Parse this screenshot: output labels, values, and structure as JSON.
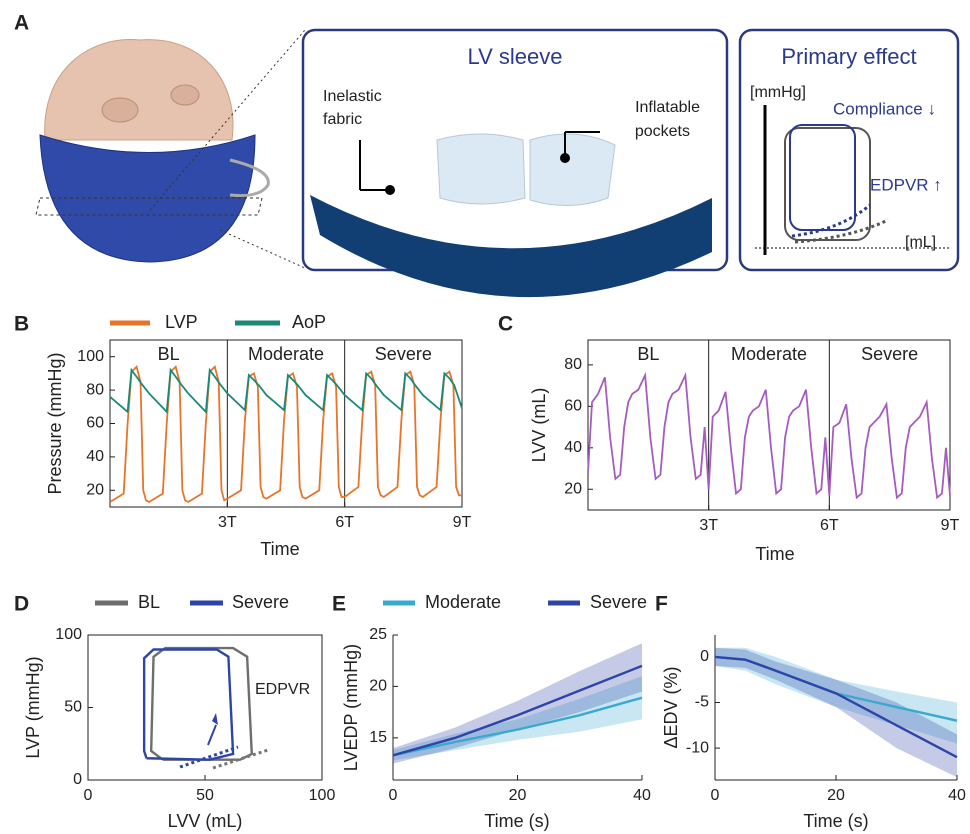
{
  "panel_a": {
    "label": "A",
    "sleeve_title": "LV sleeve",
    "fabric": [
      "Inelastic",
      "fabric"
    ],
    "pockets": [
      "Inflatable",
      "pockets"
    ],
    "effect_title": "Primary effect",
    "y_unit": "[mmHg]",
    "compliance": "Compliance ↓",
    "edpvr": "EDPVR ↑",
    "x_unit": "[mL]"
  },
  "chart_data": [
    {
      "panel": "B",
      "type": "line",
      "y_label": "Pressure (mmHg)",
      "x_label": "Time",
      "box": true,
      "xlim": [
        0,
        9
      ],
      "ylim": [
        10,
        110
      ],
      "yticks": [
        20,
        40,
        60,
        80,
        100
      ],
      "xticks": [
        {
          "value": 3,
          "label": "3T"
        },
        {
          "value": 6,
          "label": "6T"
        },
        {
          "value": 9,
          "label": "9T"
        }
      ],
      "sections": [
        {
          "label": "BL",
          "start": 0,
          "end": 3
        },
        {
          "label": "Moderate",
          "start": 3,
          "end": 6
        },
        {
          "label": "Severe",
          "start": 6,
          "end": 9
        }
      ],
      "series": [
        {
          "name": "LVP",
          "color": "#e8742a",
          "x": [
            0,
            0.35,
            0.45,
            0.55,
            0.68,
            0.78,
            0.85,
            0.92,
            1,
            1.35,
            1.45,
            1.55,
            1.68,
            1.78,
            1.85,
            1.92,
            2,
            2.35,
            2.45,
            2.55,
            2.68,
            2.78,
            2.85,
            2.92,
            3,
            3.35,
            3.45,
            3.55,
            3.68,
            3.78,
            3.85,
            3.92,
            4,
            4.35,
            4.45,
            4.55,
            4.68,
            4.78,
            4.85,
            4.92,
            5,
            5.35,
            5.45,
            5.55,
            5.68,
            5.78,
            5.85,
            5.92,
            6,
            6.35,
            6.45,
            6.55,
            6.68,
            6.78,
            6.85,
            6.92,
            7,
            7.35,
            7.45,
            7.55,
            7.68,
            7.78,
            7.85,
            7.92,
            8,
            8.35,
            8.45,
            8.55,
            8.68,
            8.78,
            8.85,
            8.92,
            9
          ],
          "values": [
            13,
            18,
            60,
            91,
            94,
            85,
            20,
            14,
            13,
            18,
            60,
            91,
            94,
            85,
            20,
            14,
            13,
            18,
            60,
            91,
            94,
            85,
            20,
            14,
            15,
            20,
            62,
            88,
            90,
            82,
            22,
            16,
            15,
            20,
            62,
            88,
            90,
            82,
            22,
            16,
            15,
            20,
            62,
            88,
            90,
            82,
            22,
            16,
            16,
            22,
            62,
            89,
            91,
            83,
            22,
            17,
            16,
            22,
            62,
            89,
            91,
            83,
            22,
            17,
            16,
            22,
            62,
            89,
            91,
            83,
            22,
            17,
            17
          ]
        },
        {
          "name": "AoP",
          "color": "#1a8a78",
          "x": [
            0,
            0.45,
            0.55,
            0.68,
            0.8,
            1,
            1.45,
            1.55,
            1.68,
            1.8,
            2,
            2.45,
            2.55,
            2.68,
            2.8,
            3,
            3.45,
            3.55,
            3.68,
            3.8,
            4,
            4.45,
            4.55,
            4.68,
            4.8,
            5,
            5.45,
            5.55,
            5.68,
            5.8,
            6,
            6.45,
            6.55,
            6.68,
            6.8,
            7,
            7.45,
            7.55,
            7.68,
            7.8,
            8,
            8.45,
            8.55,
            8.68,
            8.8,
            9
          ],
          "values": [
            76,
            67,
            92,
            88,
            84,
            78,
            67,
            92,
            88,
            84,
            78,
            67,
            92,
            88,
            84,
            78,
            68,
            89,
            86,
            83,
            77,
            68,
            89,
            86,
            83,
            77,
            68,
            89,
            86,
            83,
            77,
            68,
            90,
            87,
            83,
            77,
            68,
            90,
            87,
            83,
            77,
            68,
            90,
            87,
            83,
            69
          ]
        }
      ]
    },
    {
      "panel": "C",
      "type": "line",
      "y_label": "LVV (mL)",
      "x_label": "Time",
      "box": true,
      "xlim": [
        0,
        9
      ],
      "ylim": [
        10,
        92
      ],
      "yticks": [
        20,
        40,
        60,
        80
      ],
      "xticks": [
        {
          "value": 3,
          "label": "3T"
        },
        {
          "value": 6,
          "label": "6T"
        },
        {
          "value": 9,
          "label": "9T"
        }
      ],
      "sections": [
        {
          "label": "BL",
          "start": 0,
          "end": 3
        },
        {
          "label": "Moderate",
          "start": 3,
          "end": 6
        },
        {
          "label": "Severe",
          "start": 6,
          "end": 9
        }
      ],
      "series": [
        {
          "name": null,
          "color": "#a45cc0",
          "x": [
            0,
            0.1,
            0.25,
            0.42,
            0.55,
            0.68,
            0.8,
            0.9,
            1,
            1.1,
            1.25,
            1.42,
            1.55,
            1.68,
            1.8,
            1.9,
            2,
            2.1,
            2.25,
            2.42,
            2.55,
            2.68,
            2.8,
            2.9,
            3,
            3.1,
            3.25,
            3.42,
            3.55,
            3.68,
            3.8,
            3.9,
            4,
            4.1,
            4.25,
            4.42,
            4.55,
            4.68,
            4.8,
            4.9,
            5,
            5.1,
            5.25,
            5.42,
            5.55,
            5.68,
            5.8,
            5.9,
            6,
            6.1,
            6.25,
            6.42,
            6.55,
            6.68,
            6.8,
            6.9,
            7,
            7.1,
            7.25,
            7.42,
            7.55,
            7.68,
            7.8,
            7.9,
            8,
            8.1,
            8.25,
            8.42,
            8.55,
            8.68,
            8.8,
            8.9,
            9
          ],
          "values": [
            28,
            62,
            66,
            74,
            45,
            25,
            27,
            50,
            62,
            66,
            68,
            75,
            45,
            25,
            27,
            50,
            62,
            66,
            68,
            75,
            45,
            25,
            27,
            50,
            20,
            55,
            58,
            67,
            40,
            18,
            20,
            45,
            55,
            58,
            60,
            68,
            40,
            18,
            20,
            45,
            55,
            58,
            60,
            68,
            40,
            18,
            20,
            45,
            17,
            50,
            52,
            61,
            35,
            16,
            18,
            40,
            50,
            52,
            55,
            61,
            35,
            16,
            18,
            40,
            50,
            52,
            55,
            62,
            35,
            16,
            18,
            40,
            17
          ]
        }
      ]
    },
    {
      "panel": "D",
      "type": "line",
      "y_label": "LVP (mmHg)",
      "x_label": "LVV (mL)",
      "box": true,
      "annotation": "EDPVR",
      "xlim": [
        0,
        100
      ],
      "ylim": [
        0,
        100
      ],
      "xticks": [
        0,
        50,
        100
      ],
      "yticks": [
        0,
        50,
        100
      ],
      "series": [
        {
          "name": "BL",
          "color": "#6e6e6e",
          "x": [
            32,
            65,
            70,
            68,
            62,
            33,
            28,
            27,
            32
          ],
          "values": [
            14,
            14,
            18,
            85,
            91,
            91,
            85,
            20,
            14
          ]
        },
        {
          "name": "Severe",
          "color": "#2e45a8",
          "x": [
            25,
            52,
            62,
            60,
            55,
            28,
            24,
            24,
            25
          ],
          "values": [
            15,
            14,
            18,
            85,
            90,
            90,
            84,
            20,
            15
          ]
        }
      ]
    },
    {
      "panel": "E",
      "type": "line",
      "y_label": "LVEDP (mmHg)",
      "x_label": "Time (s)",
      "box": false,
      "xlim": [
        0,
        40
      ],
      "ylim": [
        10.9,
        25
      ],
      "xticks": [
        0,
        20,
        40
      ],
      "yticks": [
        15,
        20,
        25
      ],
      "series": [
        {
          "name": "Moderate",
          "color": "#3aa9d0",
          "x": [
            0,
            10,
            20,
            30,
            40
          ],
          "values": [
            13.3,
            14.6,
            15.8,
            17.2,
            18.9
          ],
          "lower": [
            12.8,
            13.8,
            14.8,
            15.6,
            16.8
          ],
          "upper": [
            13.8,
            15.4,
            16.8,
            18.8,
            21
          ]
        },
        {
          "name": "Severe",
          "color": "#2e45a8",
          "x": [
            0,
            10,
            20,
            30,
            40
          ],
          "values": [
            13.3,
            15,
            17.2,
            19.6,
            22
          ],
          "lower": [
            12.5,
            14,
            15.8,
            17.5,
            19.5
          ],
          "upper": [
            14,
            16,
            18.6,
            21.5,
            24.2
          ]
        }
      ]
    },
    {
      "panel": "F",
      "type": "line",
      "y_label": "ΔEDV (%)",
      "x_label": "Time (s)",
      "box": false,
      "xlim": [
        0,
        40
      ],
      "ylim": [
        -13.5,
        2.4
      ],
      "xticks": [
        0,
        20,
        40
      ],
      "yticks": [
        0,
        -5,
        -10
      ],
      "series": [
        {
          "name": null,
          "color": "#3aa9d0",
          "x": [
            0,
            5,
            10,
            20,
            30,
            40
          ],
          "values": [
            0,
            -0.3,
            -1.5,
            -4,
            -5.5,
            -7
          ],
          "lower": [
            -1,
            -1.5,
            -3,
            -5.5,
            -7.5,
            -9.5
          ],
          "upper": [
            1,
            1,
            0,
            -2.5,
            -3.8,
            -5
          ]
        },
        {
          "name": null,
          "color": "#2e45a8",
          "x": [
            0,
            5,
            10,
            20,
            30,
            40
          ],
          "values": [
            0,
            -0.3,
            -1.5,
            -4,
            -7.5,
            -11
          ],
          "lower": [
            -1,
            -1.2,
            -2.5,
            -5.5,
            -10,
            -13.2
          ],
          "upper": [
            1,
            0.8,
            -0.5,
            -2.5,
            -5,
            -8.5
          ]
        }
      ]
    }
  ]
}
